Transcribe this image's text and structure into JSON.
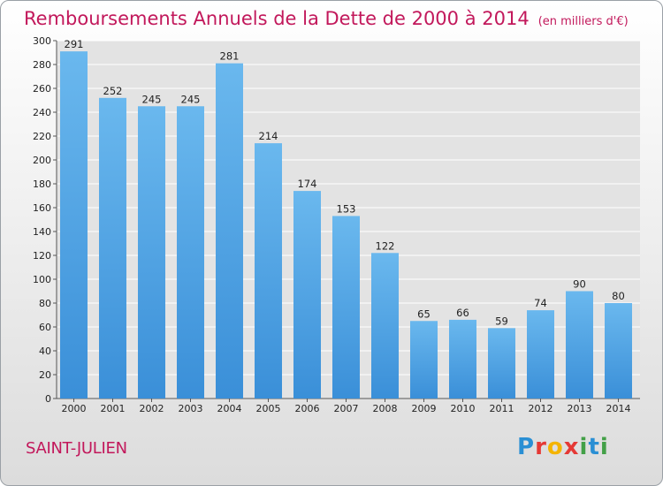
{
  "title": "Remboursements Annuels de la Dette de 2000 à 2014",
  "title_unit": "(en milliers d'€)",
  "city": "SAINT-JULIEN",
  "logo": {
    "letters": [
      "P",
      "r",
      "o",
      "x",
      "i",
      "t",
      "i"
    ],
    "colors": [
      "#2a8fd4",
      "#e53935",
      "#f4b400",
      "#e53935",
      "#43a047",
      "#2a8fd4",
      "#43a047"
    ]
  },
  "chart_data": {
    "type": "bar",
    "categories": [
      "2000",
      "2001",
      "2002",
      "2003",
      "2004",
      "2005",
      "2006",
      "2007",
      "2008",
      "2009",
      "2010",
      "2011",
      "2012",
      "2013",
      "2014"
    ],
    "values": [
      291,
      252,
      245,
      245,
      281,
      214,
      174,
      153,
      122,
      65,
      66,
      59,
      74,
      90,
      80
    ],
    "ylim": [
      0,
      300
    ],
    "yticks": [
      0,
      20,
      40,
      60,
      80,
      100,
      120,
      140,
      160,
      180,
      200,
      220,
      240,
      260,
      280,
      300
    ],
    "grid": true,
    "bar_color": "#3a8fd8",
    "bar_color_light": "#6ab8ee"
  }
}
